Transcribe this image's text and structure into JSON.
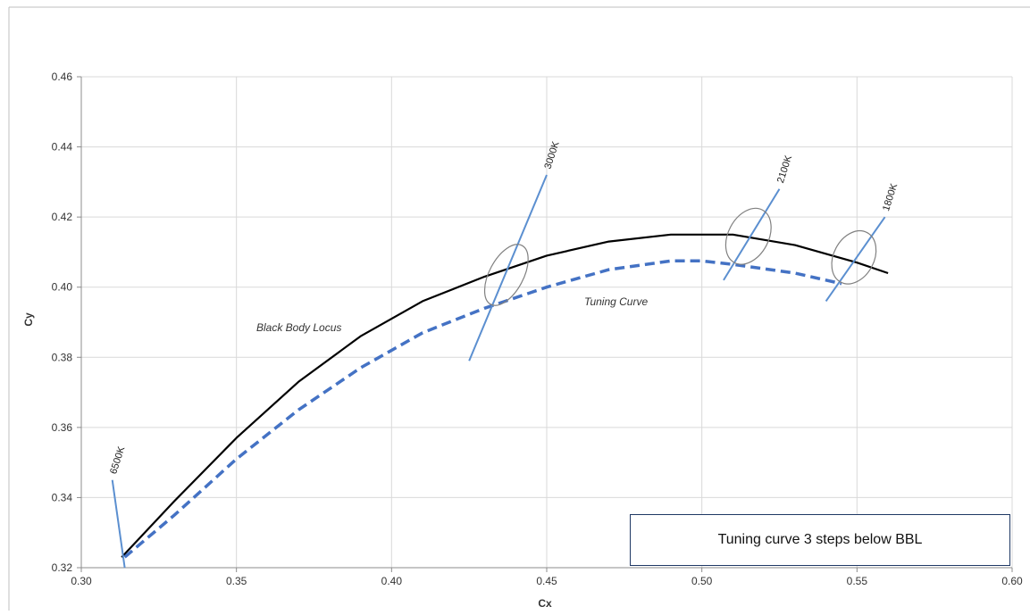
{
  "chart_data": {
    "type": "line",
    "xlabel": "Cx",
    "ylabel": "Cy",
    "xlim": [
      0.3,
      0.6
    ],
    "ylim": [
      0.32,
      0.46
    ],
    "x_ticks": [
      "0.30",
      "0.35",
      "0.40",
      "0.45",
      "0.50",
      "0.55",
      "0.60"
    ],
    "y_ticks": [
      "0.32",
      "0.34",
      "0.36",
      "0.38",
      "0.40",
      "0.42",
      "0.44",
      "0.46"
    ],
    "grid": true,
    "series": [
      {
        "name": "Black Body Locus",
        "style": "solid",
        "color": "#000000",
        "points": [
          [
            0.313,
            0.323
          ],
          [
            0.33,
            0.339
          ],
          [
            0.35,
            0.357
          ],
          [
            0.37,
            0.373
          ],
          [
            0.39,
            0.386
          ],
          [
            0.41,
            0.396
          ],
          [
            0.43,
            0.403
          ],
          [
            0.45,
            0.409
          ],
          [
            0.47,
            0.413
          ],
          [
            0.49,
            0.415
          ],
          [
            0.5,
            0.415
          ],
          [
            0.51,
            0.415
          ],
          [
            0.53,
            0.412
          ],
          [
            0.55,
            0.407
          ],
          [
            0.56,
            0.404
          ]
        ]
      },
      {
        "name": "Tuning Curve",
        "style": "dashed",
        "color": "#4472c4",
        "points": [
          [
            0.314,
            0.323
          ],
          [
            0.33,
            0.335
          ],
          [
            0.35,
            0.351
          ],
          [
            0.37,
            0.365
          ],
          [
            0.39,
            0.377
          ],
          [
            0.41,
            0.387
          ],
          [
            0.43,
            0.394
          ],
          [
            0.45,
            0.4
          ],
          [
            0.47,
            0.405
          ],
          [
            0.49,
            0.4075
          ],
          [
            0.5,
            0.4075
          ],
          [
            0.51,
            0.4065
          ],
          [
            0.53,
            0.404
          ],
          [
            0.545,
            0.401
          ]
        ]
      }
    ],
    "isotherms": [
      {
        "label": "6500K",
        "from": [
          0.31,
          0.345
        ],
        "to": [
          0.314,
          0.32
        ]
      },
      {
        "label": "3000K",
        "from": [
          0.425,
          0.379
        ],
        "to": [
          0.45,
          0.432
        ]
      },
      {
        "label": "2100K",
        "from": [
          0.507,
          0.402
        ],
        "to": [
          0.525,
          0.428
        ]
      },
      {
        "label": "1800K",
        "from": [
          0.54,
          0.396
        ],
        "to": [
          0.559,
          0.42
        ]
      }
    ],
    "highlights": [
      {
        "cx": 0.437,
        "cy": 0.4035,
        "rx": 0.0055,
        "ry": 0.0095
      },
      {
        "cx": 0.515,
        "cy": 0.4145,
        "rx": 0.0065,
        "ry": 0.0085
      },
      {
        "cx": 0.549,
        "cy": 0.4085,
        "rx": 0.0065,
        "ry": 0.008
      }
    ],
    "annotations": {
      "black_body_locus": "Black Body Locus",
      "tuning_curve": "Tuning Curve"
    },
    "callout": "Tuning curve 3 steps below BBL",
    "colors": {
      "grid": "#d9d9d9",
      "isotherm": "#5b8fd0",
      "highlight": "#808080"
    }
  }
}
